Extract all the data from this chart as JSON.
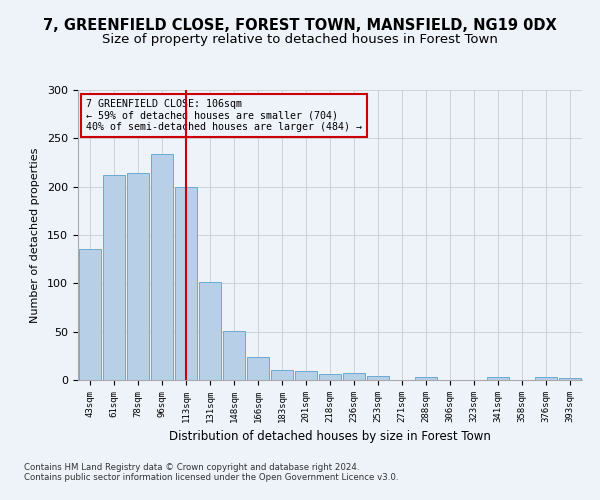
{
  "title": "7, GREENFIELD CLOSE, FOREST TOWN, MANSFIELD, NG19 0DX",
  "subtitle": "Size of property relative to detached houses in Forest Town",
  "xlabel": "Distribution of detached houses by size in Forest Town",
  "ylabel": "Number of detached properties",
  "categories": [
    "43sqm",
    "61sqm",
    "78sqm",
    "96sqm",
    "113sqm",
    "131sqm",
    "148sqm",
    "166sqm",
    "183sqm",
    "201sqm",
    "218sqm",
    "236sqm",
    "253sqm",
    "271sqm",
    "288sqm",
    "306sqm",
    "323sqm",
    "341sqm",
    "358sqm",
    "376sqm",
    "393sqm"
  ],
  "values": [
    136,
    212,
    214,
    234,
    200,
    101,
    51,
    24,
    10,
    9,
    6,
    7,
    4,
    0,
    3,
    0,
    0,
    3,
    0,
    3,
    2
  ],
  "bar_color": "#b8cfe8",
  "bar_edge_color": "#6aaad4",
  "grid_color": "#cccccc",
  "vline_bin_index": 4,
  "vline_color": "#cc0000",
  "annotation_line1": "7 GREENFIELD CLOSE: 106sqm",
  "annotation_line2": "← 59% of detached houses are smaller (704)",
  "annotation_line3": "40% of semi-detached houses are larger (484) →",
  "annotation_box_edge_color": "#cc0000",
  "ylim": [
    0,
    300
  ],
  "yticks": [
    0,
    50,
    100,
    150,
    200,
    250,
    300
  ],
  "footer_text": "Contains HM Land Registry data © Crown copyright and database right 2024.\nContains public sector information licensed under the Open Government Licence v3.0.",
  "background_color": "#eef2f9",
  "title_fontsize": 10.5,
  "subtitle_fontsize": 9.5
}
